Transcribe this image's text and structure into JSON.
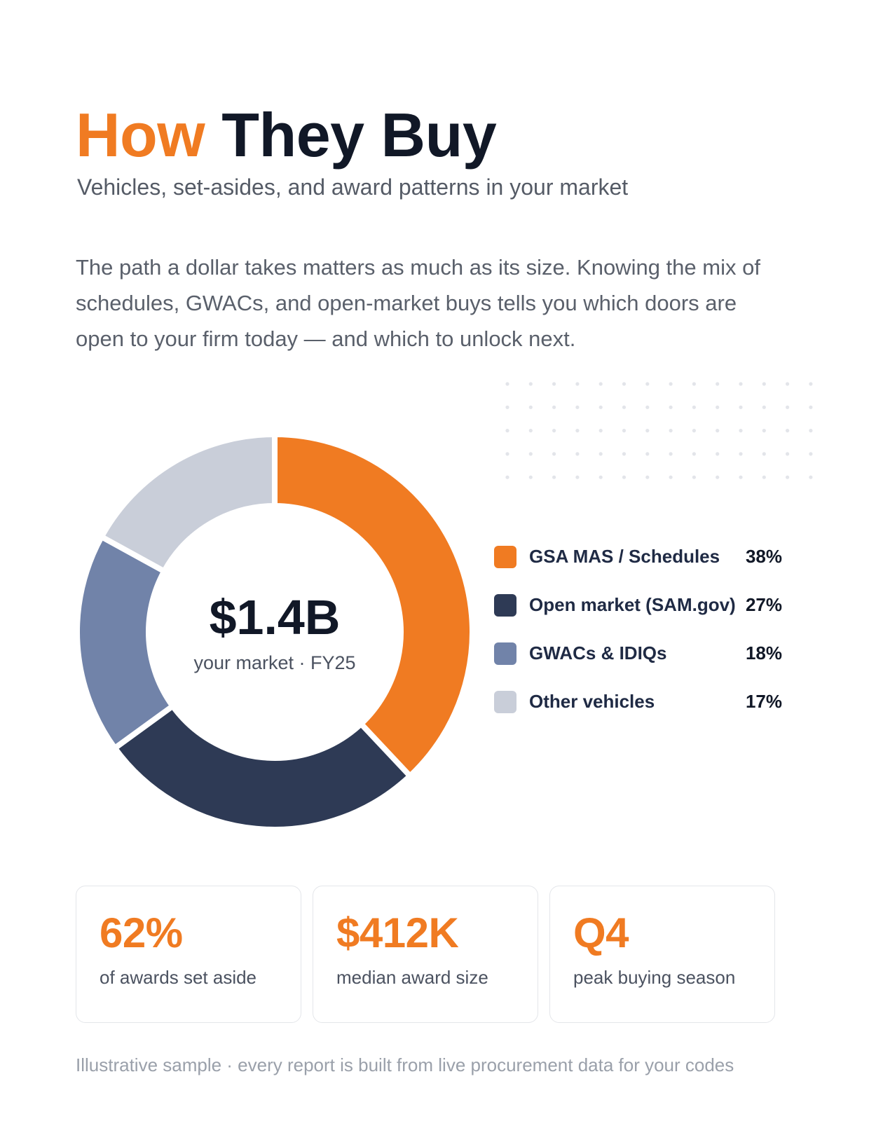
{
  "header": {
    "title_accent": "How",
    "title_rest": "They Buy",
    "subtitle": "Vehicles, set-asides, and award patterns in your market"
  },
  "intro": "The path a dollar takes matters as much as its size. Knowing the mix of schedules, GWACs, and open-market buys tells you which doors are open to your firm today — and which to unlock next.",
  "chart_data": {
    "type": "pie",
    "title": "",
    "center_value": "$1.4B",
    "center_label": "your market · FY25",
    "legend_position": "right",
    "categories": [
      "GSA MAS / Schedules",
      "Open market (SAM.gov)",
      "GWACs & IDIQs",
      "Other vehicles"
    ],
    "values": [
      38,
      27,
      18,
      17
    ],
    "labels": [
      "38%",
      "27%",
      "18%",
      "17%"
    ],
    "colors": [
      "#F07B22",
      "#2E3A55",
      "#7183A9",
      "#C9CED9"
    ]
  },
  "stats": [
    {
      "value": "62%",
      "label": "of awards set aside"
    },
    {
      "value": "$412K",
      "label": "median award size"
    },
    {
      "value": "Q4",
      "label": "peak buying season"
    }
  ],
  "footnote": "Illustrative sample · every report is built from live procurement data for your codes",
  "colors": {
    "accent": "#F07B22",
    "navy": "#2E3A55",
    "text_dark": "#111827"
  }
}
